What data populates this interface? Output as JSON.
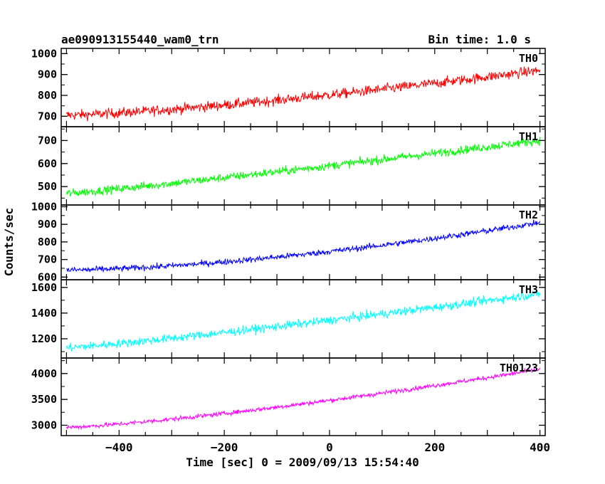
{
  "header": {
    "left_title": "ae090913155440_wam0_trn",
    "right_title": "Bin time: 1.0 s"
  },
  "axes": {
    "ylabel": "Counts/sec",
    "xlabel": "Time [sec] 0 = 2009/09/13 15:54:40",
    "x_range": [
      -510,
      410
    ],
    "x_ticks": [
      -400,
      -200,
      0,
      200,
      400
    ],
    "x_tick_labels": [
      "−400",
      "−200",
      "0",
      "200",
      "400"
    ]
  },
  "chart_data": {
    "type": "line",
    "x_step": 1.0,
    "x_range": [
      -500,
      400
    ],
    "series": [
      {
        "name": "TH0",
        "color": "#ff0000",
        "ylim": [
          650,
          1025
        ],
        "yticks": [
          700,
          800,
          900,
          1000
        ],
        "start": 705,
        "end": 920,
        "noise": 40,
        "curve": 1.35
      },
      {
        "name": "TH1",
        "color": "#00ff00",
        "ylim": [
          420,
          760
        ],
        "yticks": [
          500,
          600,
          700
        ],
        "start": 470,
        "end": 700,
        "noise": 30,
        "curve": 1.1
      },
      {
        "name": "TH2",
        "color": "#0000ff",
        "ylim": [
          585,
          1010
        ],
        "yticks": [
          600,
          700,
          800,
          900,
          1000
        ],
        "start": 640,
        "end": 910,
        "noise": 28,
        "curve": 1.6
      },
      {
        "name": "TH3",
        "color": "#00ffff",
        "ylim": [
          1050,
          1660
        ],
        "yticks": [
          1200,
          1400,
          1600
        ],
        "start": 1130,
        "end": 1550,
        "noise": 55,
        "curve": 1.15
      },
      {
        "name": "TH0123",
        "color": "#ff00ff",
        "ylim": [
          2800,
          4300
        ],
        "yticks": [
          3000,
          3500,
          4000
        ],
        "start": 2960,
        "end": 4080,
        "noise": 70,
        "curve": 1.3
      }
    ]
  }
}
